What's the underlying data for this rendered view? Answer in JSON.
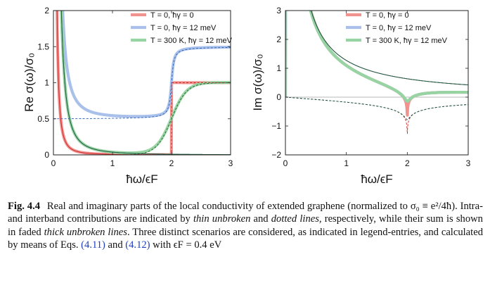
{
  "chart_data": [
    {
      "type": "line",
      "ylabel": "Re σ(ω)/σ₀",
      "xlabel": "ħω/ϵF",
      "xlim": [
        0,
        3
      ],
      "ylim": [
        0,
        2
      ],
      "x_ticks": [
        "0",
        "1",
        "2",
        "3"
      ],
      "y_ticks": [
        "0",
        "0.5",
        "1",
        "1.5",
        "2"
      ],
      "legend": [
        "T = 0,  ħγ = 0",
        "T = 0,  ħγ = 12 meV",
        "T = 300 K,  ħγ = 12 meV"
      ],
      "legend_position": "top-right",
      "colors": [
        "#f2928f",
        "#a9c1ea",
        "#98d3a2"
      ]
    },
    {
      "type": "line",
      "ylabel": "Im σ(ω)/σ₀",
      "xlabel": "ħω/ϵF",
      "xlim": [
        0,
        3
      ],
      "ylim": [
        -2,
        3
      ],
      "x_ticks": [
        "0",
        "1",
        "2",
        "3"
      ],
      "y_ticks": [
        "−2",
        "−1",
        "0",
        "1",
        "2",
        "3"
      ],
      "legend": [
        "T = 0,  ħγ = 0",
        "T = 0,  ħγ = 12 meV",
        "T = 300 K,  ħγ = 12 meV"
      ],
      "legend_position": "top-right",
      "colors": [
        "#f2928f",
        "#a9c1ea",
        "#98d3a2"
      ]
    }
  ],
  "caption": {
    "label": "Fig. 4.4",
    "part1": "Real and imaginary parts of the local conductivity of extended graphene (normalized to σ₀ ≡ e²/4ħ). Intra- and interband contributions are indicated by ",
    "em1": "thin unbroken",
    "part2": " and ",
    "em2": "dotted lines",
    "part3": ", respectively, while their sum is shown in faded ",
    "em3": "thick unbroken lines",
    "part4": ". Three distinct scenarios are considered, as indicated in legend-entries, and calculated by means of Eqs. ",
    "ref1": "(4.11)",
    "part5": " and ",
    "ref2": "(4.12)",
    "part6": " with ϵF = 0.4 eV"
  }
}
